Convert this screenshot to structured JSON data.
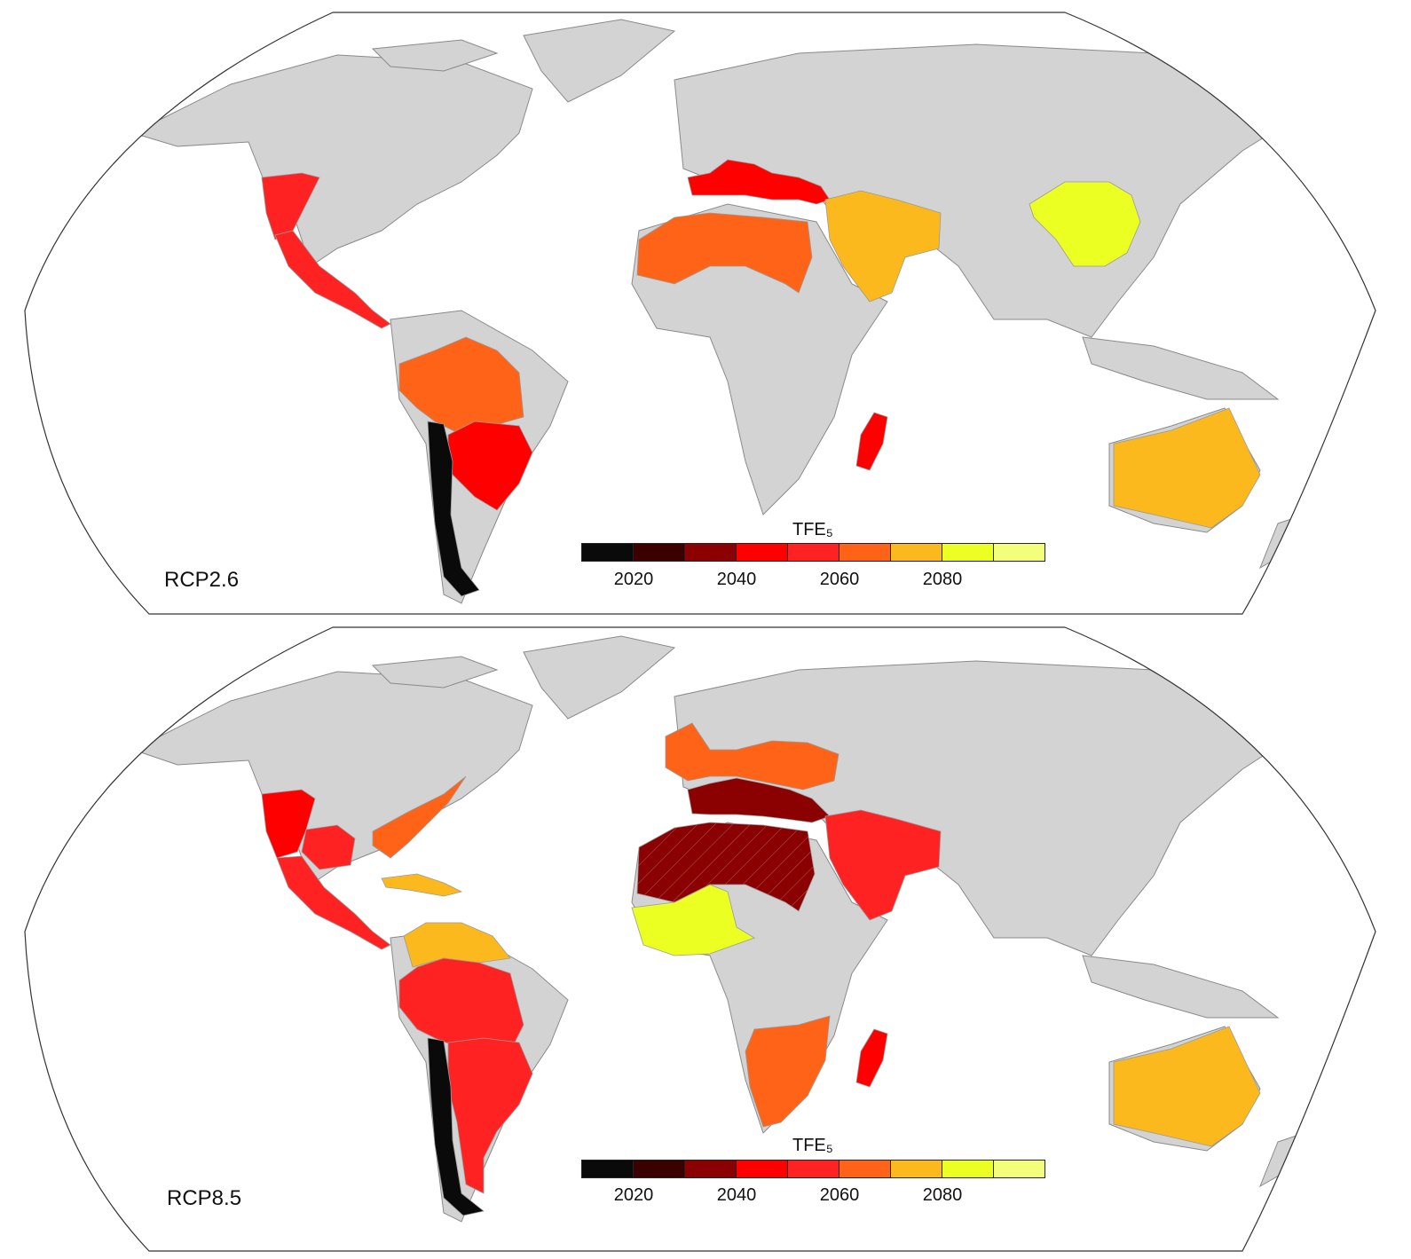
{
  "colors": {
    "land": "#d3d3d3",
    "border": "#8a8a8a",
    "ocean": "#ffffff",
    "frame": "#333333"
  },
  "colorbar": {
    "title": "TFE₅",
    "bins": [
      "#0a0a0a",
      "#3b0000",
      "#8b0000",
      "#ff0000",
      "#ff2222",
      "#ff6318",
      "#fbb91e",
      "#ecff22",
      "#f3ff7a"
    ],
    "tick_labels": [
      "2020",
      "2040",
      "2060",
      "2080"
    ]
  },
  "panels": [
    {
      "scenario": "RCP2.6",
      "regions": [
        {
          "name": "western-north-america",
          "color_index": 4
        },
        {
          "name": "central-america",
          "color_index": 4
        },
        {
          "name": "amazon",
          "color_index": 5
        },
        {
          "name": "southeastern-south-america",
          "color_index": 3
        },
        {
          "name": "west-coast-south-america",
          "color_index": 0
        },
        {
          "name": "mediterranean",
          "color_index": 3
        },
        {
          "name": "sahara",
          "color_index": 5
        },
        {
          "name": "west-asia",
          "color_index": 6
        },
        {
          "name": "east-asia",
          "color_index": 7
        },
        {
          "name": "madagascar",
          "color_index": 3
        },
        {
          "name": "australia",
          "color_index": 6
        }
      ]
    },
    {
      "scenario": "RCP8.5",
      "regions": [
        {
          "name": "western-north-america",
          "color_index": 3
        },
        {
          "name": "central-north-america",
          "color_index": 4
        },
        {
          "name": "eastern-north-america",
          "color_index": 5
        },
        {
          "name": "central-america",
          "color_index": 4
        },
        {
          "name": "caribbean",
          "color_index": 6
        },
        {
          "name": "northern-south-america",
          "color_index": 6
        },
        {
          "name": "amazon",
          "color_index": 4
        },
        {
          "name": "southeastern-south-america",
          "color_index": 4
        },
        {
          "name": "west-coast-south-america",
          "color_index": 0
        },
        {
          "name": "europe",
          "color_index": 5
        },
        {
          "name": "mediterranean",
          "color_index": 2
        },
        {
          "name": "sahara",
          "color_index": 2
        },
        {
          "name": "west-africa",
          "color_index": 7
        },
        {
          "name": "west-asia",
          "color_index": 4
        },
        {
          "name": "southern-africa",
          "color_index": 5
        },
        {
          "name": "madagascar",
          "color_index": 3
        },
        {
          "name": "australia",
          "color_index": 6
        }
      ]
    }
  ]
}
